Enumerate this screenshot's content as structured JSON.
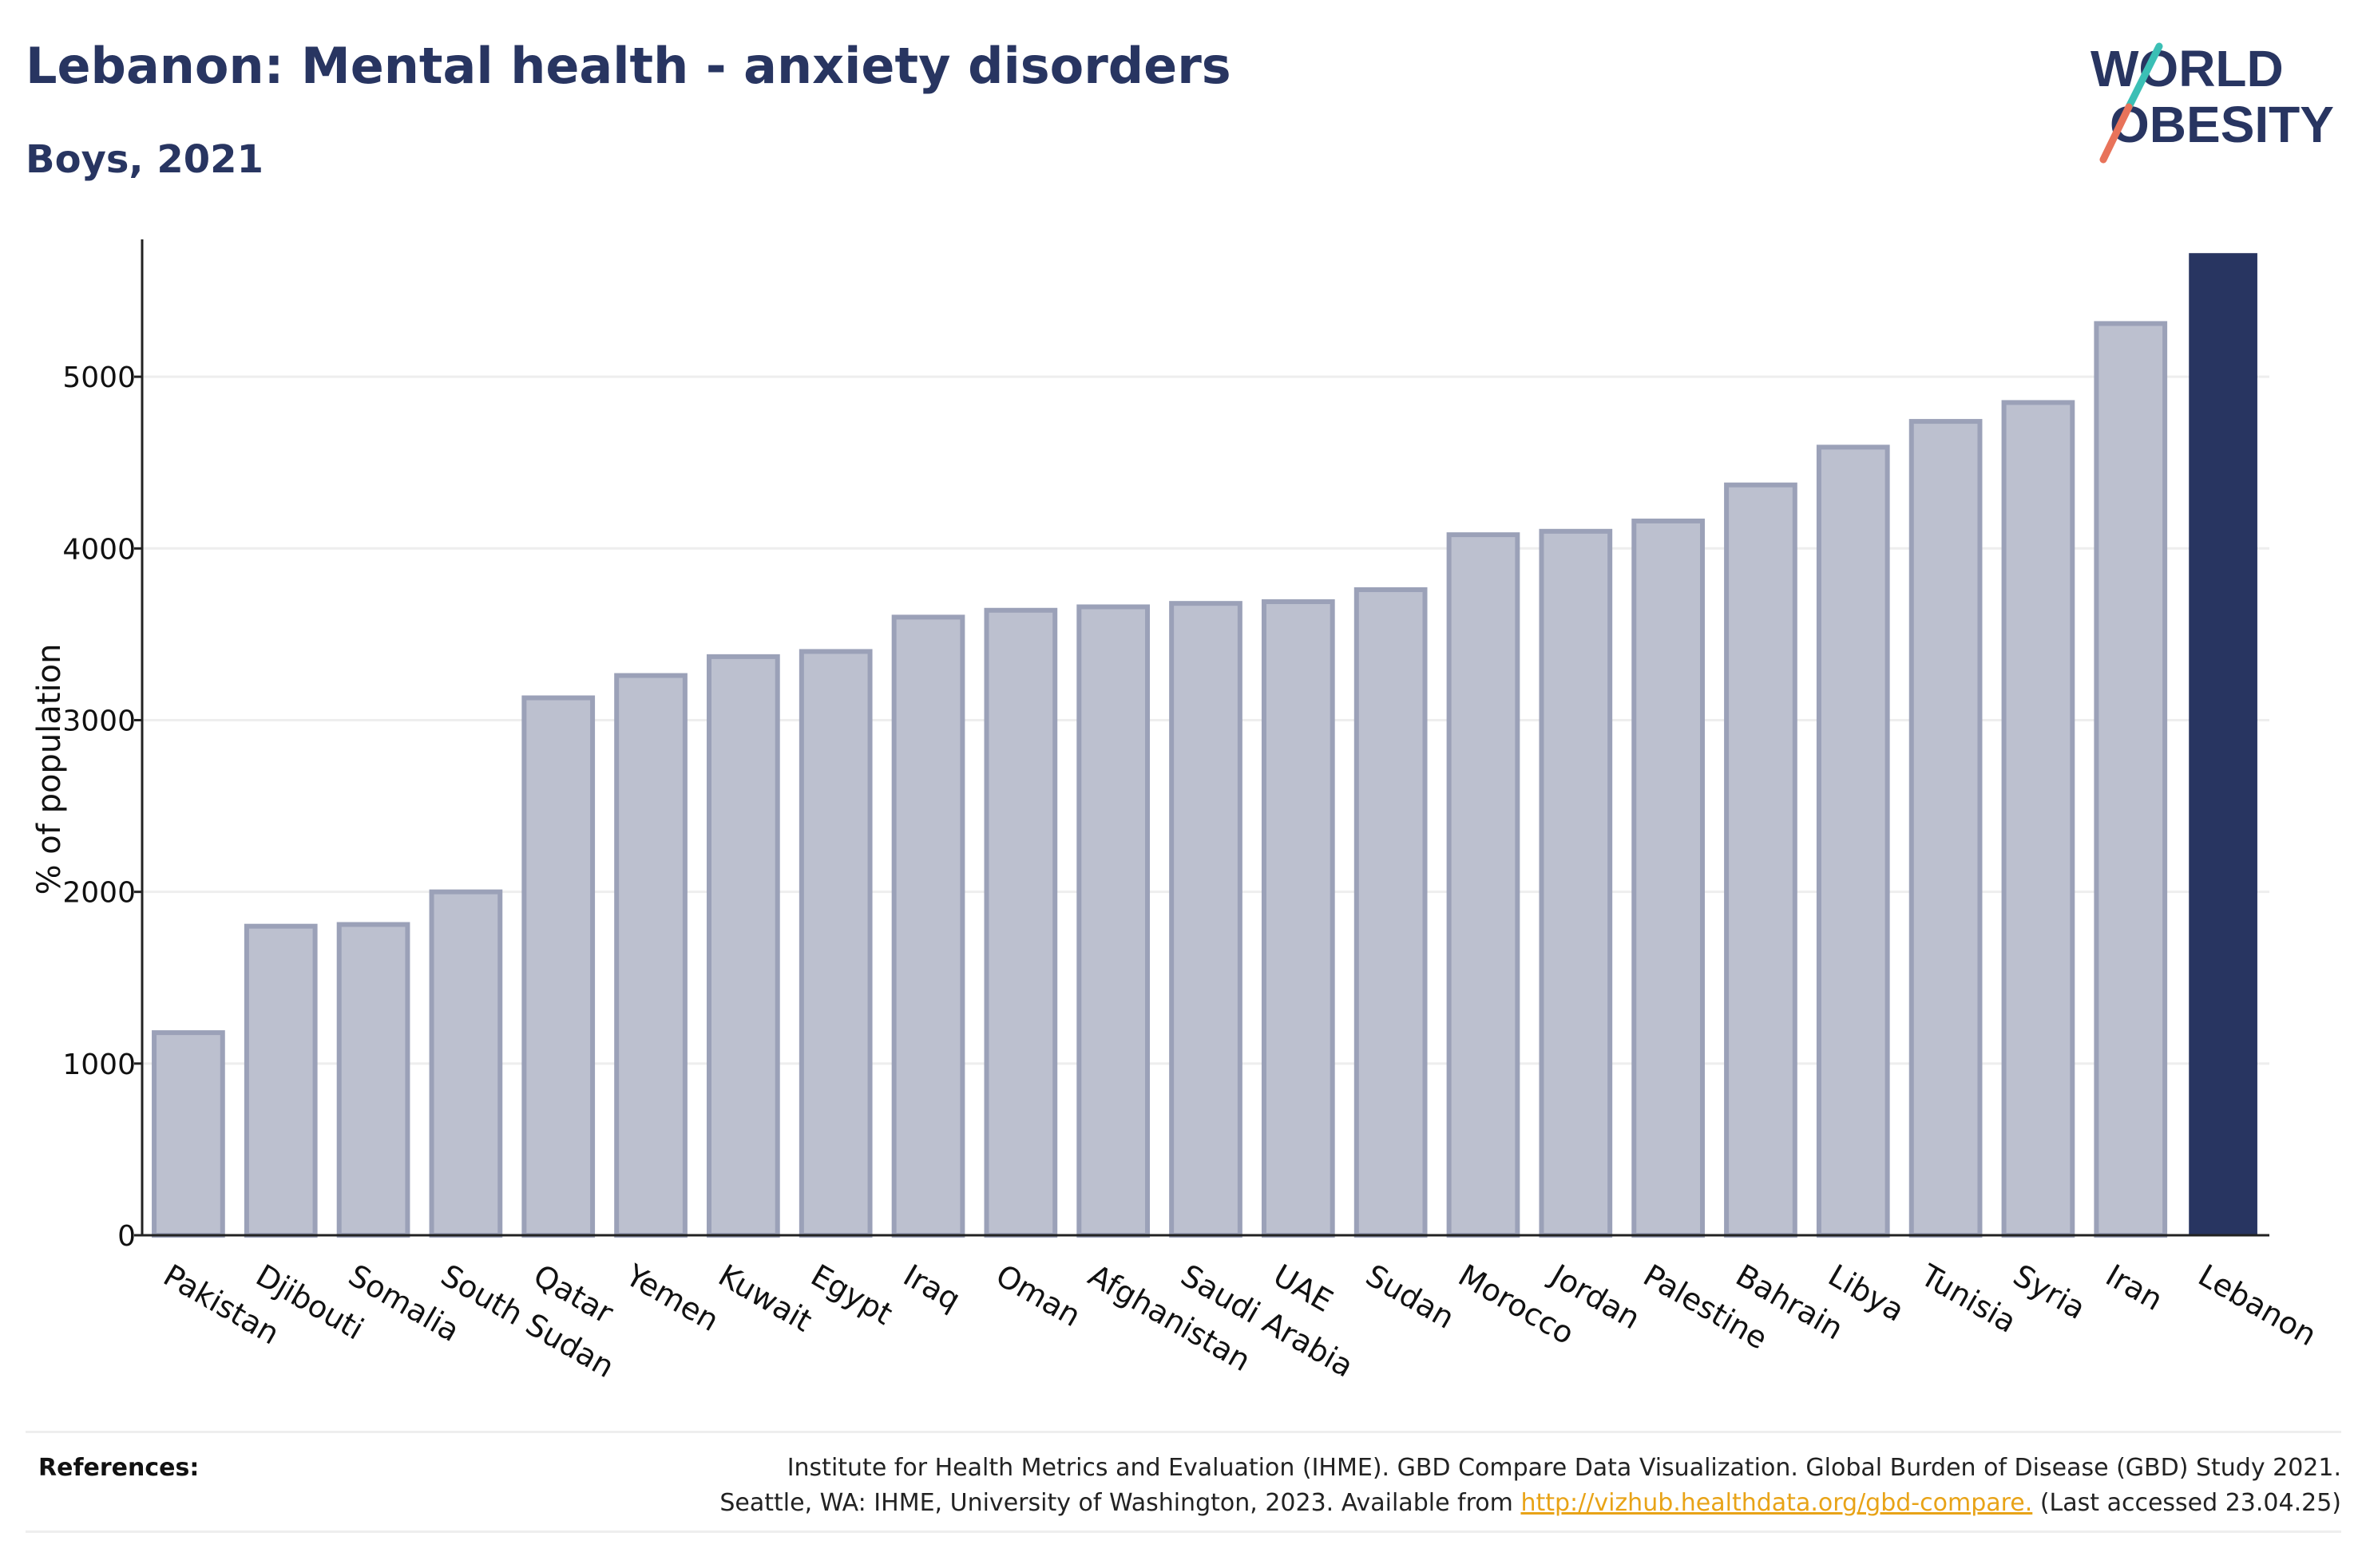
{
  "title": "Lebanon: Mental health - anxiety disorders",
  "subtitle": "Boys, 2021",
  "logo": {
    "line1": "WORLD",
    "line2": "OBESITY",
    "text_color": "#283561",
    "slash_colors": [
      "#3bbfb5",
      "#e8735a"
    ]
  },
  "colors": {
    "highlight": "#283561",
    "bar_fill": "#bcc0cf",
    "bar_stroke": "#9ba1b8",
    "grid": "#eeeeee",
    "axis": "#222222",
    "link": "#e8a317"
  },
  "chart_data": {
    "type": "bar",
    "title": "Lebanon: Mental health - anxiety disorders",
    "subtitle": "Boys, 2021",
    "ylabel": "% of population",
    "xlabel": "",
    "ylim": [
      0,
      5800
    ],
    "yticks": [
      0,
      1000,
      2000,
      3000,
      4000,
      5000
    ],
    "grid": true,
    "highlight_category": "Lebanon",
    "categories": [
      "Pakistan",
      "Djibouti",
      "Somalia",
      "South Sudan",
      "Qatar",
      "Yemen",
      "Kuwait",
      "Egypt",
      "Iraq",
      "Oman",
      "Afghanistan",
      "Saudi Arabia",
      "UAE",
      "Sudan",
      "Morocco",
      "Jordan",
      "Palestine",
      "Bahrain",
      "Libya",
      "Tunisia",
      "Syria",
      "Iran",
      "Lebanon"
    ],
    "values": [
      1180,
      1800,
      1810,
      2000,
      3130,
      3260,
      3370,
      3400,
      3600,
      3640,
      3660,
      3680,
      3690,
      3760,
      4080,
      4100,
      4160,
      4370,
      4590,
      4740,
      4850,
      5310,
      5720
    ]
  },
  "references": {
    "label": "References:",
    "line1": "Institute for Health Metrics and Evaluation (IHME). GBD Compare Data Visualization. Global Burden of Disease (GBD) Study 2021.",
    "line2_prefix": "Seattle, WA: IHME, University of Washington, 2023. Available from",
    "link_text": "http://vizhub.healthdata.org/gbd-compare.",
    "line2_suffix": "(Last accessed 23.04.25)"
  }
}
